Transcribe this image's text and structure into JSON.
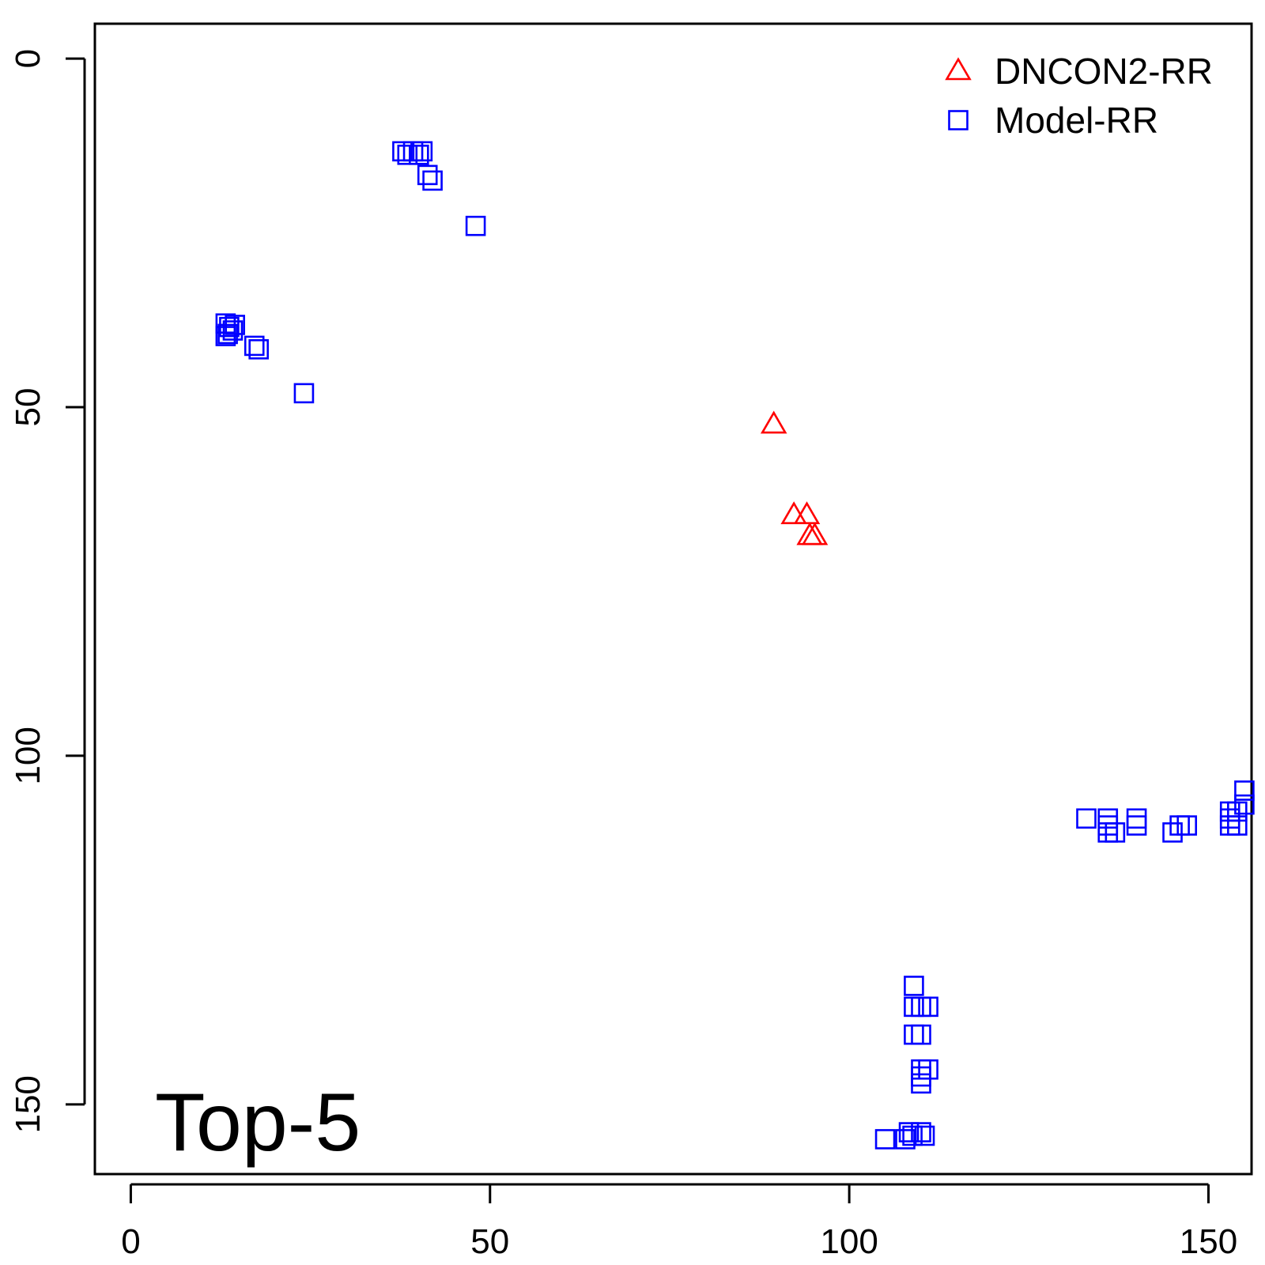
{
  "chart_data": {
    "type": "scatter",
    "panel_label": "Top-5",
    "xlim": [
      -5,
      156
    ],
    "ylim": [
      -5,
      160
    ],
    "y_reversed": true,
    "x_ticks": [
      0,
      50,
      100,
      150
    ],
    "y_ticks": [
      0,
      50,
      100,
      150
    ],
    "grid": false,
    "legend_position": "top-right",
    "series": [
      {
        "name": "DNCON2-RR",
        "marker": "triangle",
        "color": "#ff0000",
        "points": [
          [
            89.5,
            52.5
          ],
          [
            92.3,
            65.5
          ],
          [
            94.1,
            65.5
          ],
          [
            94.5,
            68.5
          ],
          [
            95.2,
            68.5
          ]
        ]
      },
      {
        "name": "Model-RR",
        "marker": "square",
        "color": "#0000ff",
        "points": [
          [
            13.2,
            38.0
          ],
          [
            13.7,
            38.5
          ],
          [
            14.2,
            39.0
          ],
          [
            13.5,
            39.5
          ],
          [
            14.5,
            38.2
          ],
          [
            13.2,
            39.8
          ],
          [
            17.2,
            41.2
          ],
          [
            17.8,
            41.7
          ],
          [
            24.1,
            48.0
          ],
          [
            37.8,
            13.3
          ],
          [
            38.5,
            13.8
          ],
          [
            39.3,
            13.3
          ],
          [
            40.1,
            13.8
          ],
          [
            40.6,
            13.3
          ],
          [
            41.3,
            16.7
          ],
          [
            42.0,
            17.5
          ],
          [
            48.0,
            24.0
          ],
          [
            105.0,
            155.0
          ],
          [
            107.8,
            155.0
          ],
          [
            108.3,
            154.0
          ],
          [
            108.8,
            154.5
          ],
          [
            110.0,
            154.0
          ],
          [
            110.5,
            154.5
          ],
          [
            109.0,
            133.0
          ],
          [
            109.0,
            136.0
          ],
          [
            110.0,
            136.0
          ],
          [
            111.0,
            136.0
          ],
          [
            109.0,
            140.0
          ],
          [
            110.0,
            140.0
          ],
          [
            110.0,
            145.0
          ],
          [
            110.0,
            146.0
          ],
          [
            110.0,
            147.0
          ],
          [
            111.0,
            145.0
          ],
          [
            133.0,
            109.0
          ],
          [
            136.0,
            109.0
          ],
          [
            136.0,
            110.0
          ],
          [
            136.0,
            111.0
          ],
          [
            137.0,
            111.0
          ],
          [
            140.0,
            109.0
          ],
          [
            140.0,
            110.0
          ],
          [
            145.0,
            111.0
          ],
          [
            146.0,
            110.0
          ],
          [
            147.0,
            110.0
          ],
          [
            153.0,
            108.0
          ],
          [
            153.0,
            109.0
          ],
          [
            153.0,
            110.0
          ],
          [
            154.0,
            108.0
          ],
          [
            154.0,
            110.0
          ],
          [
            155.0,
            107.0
          ],
          [
            155.0,
            105.0
          ]
        ]
      }
    ]
  }
}
